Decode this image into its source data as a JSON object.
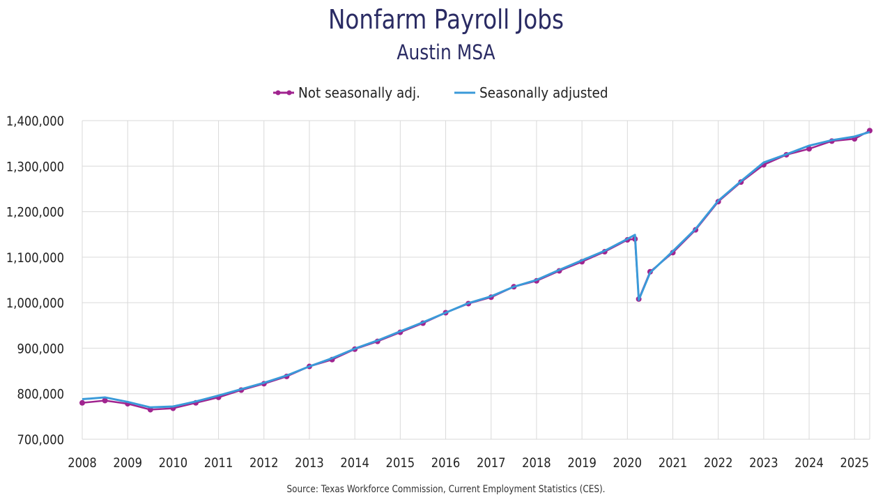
{
  "title": "Nonfarm Payroll Jobs",
  "subtitle": "Austin MSA",
  "source": "Source: Texas Workforce Commission, Current Employment Statistics (CES).",
  "legend": [
    {
      "label": "Not seasonally adj.",
      "color": "#a0248f",
      "marker": "circle-line"
    },
    {
      "label": "Seasonally adjusted",
      "color": "#3a9ad9",
      "marker": "line"
    }
  ],
  "chart_data": {
    "type": "line",
    "title": "Nonfarm Payroll Jobs",
    "subtitle": "Austin MSA",
    "ylim": [
      700000,
      1400000
    ],
    "y_ticks": [
      700000,
      800000,
      900000,
      1000000,
      1100000,
      1200000,
      1300000,
      1400000
    ],
    "y_tick_labels": [
      "700,000",
      "800,000",
      "900,000",
      "1,000,000",
      "1,100,000",
      "1,200,000",
      "1,300,000",
      "1,400,000"
    ],
    "x_ticks": [
      "2008",
      "2009",
      "2010",
      "2011",
      "2012",
      "2013",
      "2014",
      "2015",
      "2016",
      "2017",
      "2018",
      "2019",
      "2020",
      "2021",
      "2022",
      "2023",
      "2024",
      "2025"
    ],
    "grid": true,
    "legend_position": "top-center",
    "x_range": [
      "2008-01",
      "2025-05"
    ],
    "series": [
      {
        "name": "Not seasonally adj.",
        "color": "#a0248f",
        "x": [
          "2008-01",
          "2008-07",
          "2009-01",
          "2009-07",
          "2010-01",
          "2010-07",
          "2011-01",
          "2011-07",
          "2012-01",
          "2012-07",
          "2013-01",
          "2013-07",
          "2014-01",
          "2014-07",
          "2015-01",
          "2015-07",
          "2016-01",
          "2016-07",
          "2017-01",
          "2017-07",
          "2018-01",
          "2018-07",
          "2019-01",
          "2019-07",
          "2020-01",
          "2020-03",
          "2020-04",
          "2020-07",
          "2021-01",
          "2021-07",
          "2022-01",
          "2022-07",
          "2023-01",
          "2023-07",
          "2024-01",
          "2024-07",
          "2025-01",
          "2025-05"
        ],
        "values": [
          780000,
          785000,
          778000,
          765000,
          768000,
          780000,
          792000,
          808000,
          822000,
          838000,
          860000,
          875000,
          898000,
          915000,
          935000,
          955000,
          978000,
          998000,
          1012000,
          1035000,
          1048000,
          1070000,
          1090000,
          1112000,
          1138000,
          1140000,
          1008000,
          1068000,
          1110000,
          1160000,
          1222000,
          1265000,
          1303000,
          1325000,
          1338000,
          1355000,
          1360000,
          1378000
        ]
      },
      {
        "name": "Seasonally adjusted",
        "color": "#3a9ad9",
        "x": [
          "2008-01",
          "2008-07",
          "2009-01",
          "2009-07",
          "2010-01",
          "2010-07",
          "2011-01",
          "2011-07",
          "2012-01",
          "2012-07",
          "2013-01",
          "2013-07",
          "2014-01",
          "2014-07",
          "2015-01",
          "2015-07",
          "2016-01",
          "2016-07",
          "2017-01",
          "2017-07",
          "2018-01",
          "2018-07",
          "2019-01",
          "2019-07",
          "2020-01",
          "2020-03",
          "2020-04",
          "2020-07",
          "2021-01",
          "2021-07",
          "2022-01",
          "2022-07",
          "2023-01",
          "2023-07",
          "2024-01",
          "2024-07",
          "2025-01",
          "2025-05"
        ],
        "values": [
          788000,
          792000,
          782000,
          770000,
          772000,
          783000,
          796000,
          810000,
          824000,
          840000,
          860000,
          878000,
          899000,
          917000,
          937000,
          957000,
          978000,
          999000,
          1014000,
          1035000,
          1050000,
          1072000,
          1093000,
          1114000,
          1140000,
          1149000,
          1006000,
          1066000,
          1113000,
          1162000,
          1224000,
          1267000,
          1308000,
          1326000,
          1345000,
          1357000,
          1365000,
          1375000
        ]
      }
    ]
  }
}
